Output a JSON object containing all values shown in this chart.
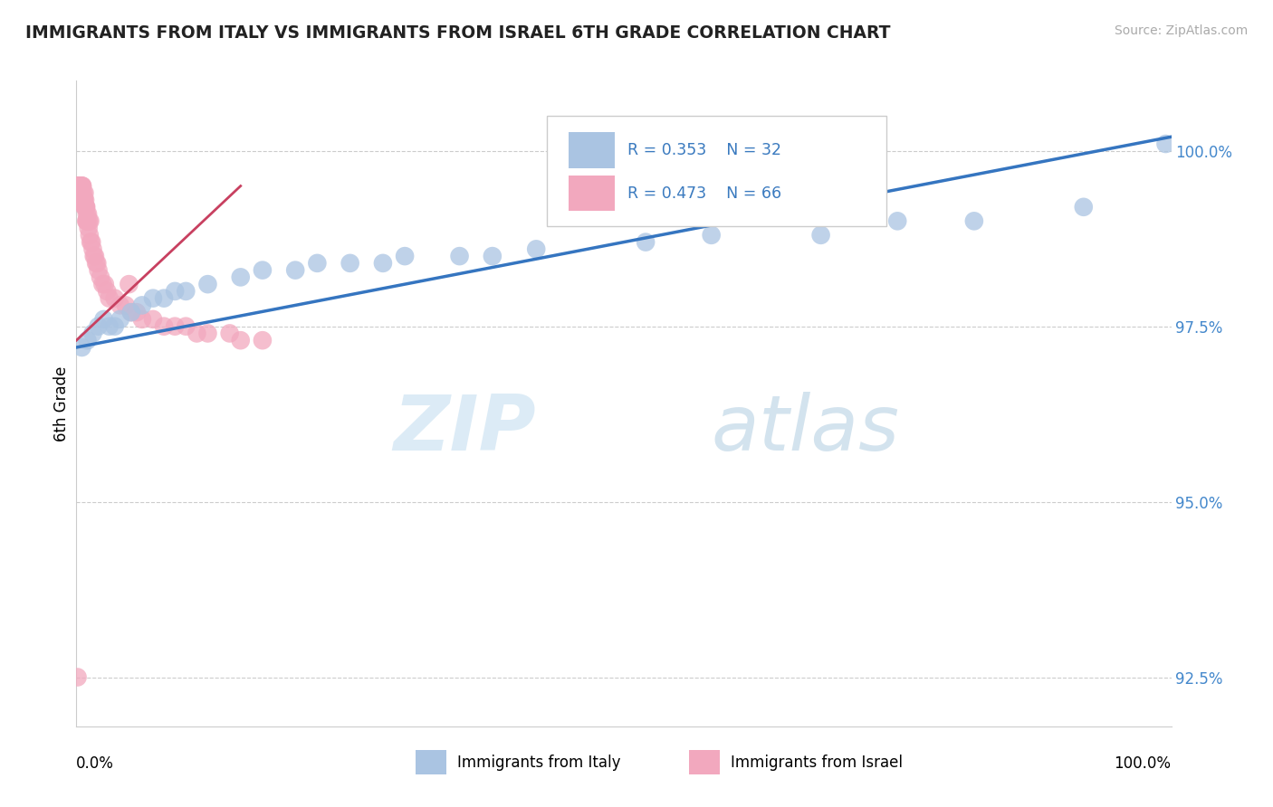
{
  "title": "IMMIGRANTS FROM ITALY VS IMMIGRANTS FROM ISRAEL 6TH GRADE CORRELATION CHART",
  "source": "Source: ZipAtlas.com",
  "ylabel": "6th Grade",
  "xlim": [
    0.0,
    100.0
  ],
  "ylim": [
    91.8,
    101.0
  ],
  "yticks": [
    92.5,
    95.0,
    97.5,
    100.0
  ],
  "ytick_labels": [
    "92.5%",
    "95.0%",
    "97.5%",
    "100.0%"
  ],
  "legend_r1": "R = 0.353",
  "legend_n1": "N = 32",
  "legend_r2": "R = 0.473",
  "legend_n2": "N = 66",
  "italy_color": "#aac4e2",
  "israel_color": "#f2a8be",
  "italy_line_color": "#3575c0",
  "israel_line_color": "#c84060",
  "grid_color": "#cccccc",
  "italy_points_x": [
    0.5,
    1.0,
    1.5,
    2.0,
    2.5,
    3.0,
    3.5,
    4.0,
    5.0,
    6.0,
    7.0,
    8.0,
    9.0,
    10.0,
    12.0,
    15.0,
    17.0,
    20.0,
    22.0,
    25.0,
    28.0,
    30.0,
    35.0,
    38.0,
    42.0,
    52.0,
    58.0,
    68.0,
    75.0,
    82.0,
    92.0,
    99.5
  ],
  "italy_points_y": [
    97.2,
    97.3,
    97.4,
    97.5,
    97.6,
    97.5,
    97.5,
    97.6,
    97.7,
    97.8,
    97.9,
    97.9,
    98.0,
    98.0,
    98.1,
    98.2,
    98.3,
    98.3,
    98.4,
    98.4,
    98.4,
    98.5,
    98.5,
    98.5,
    98.6,
    98.7,
    98.8,
    98.8,
    99.0,
    99.0,
    99.2,
    100.1
  ],
  "israel_points_x": [
    0.1,
    0.15,
    0.2,
    0.25,
    0.3,
    0.35,
    0.4,
    0.45,
    0.5,
    0.55,
    0.6,
    0.65,
    0.7,
    0.75,
    0.8,
    0.85,
    0.9,
    0.95,
    1.0,
    1.1,
    1.2,
    1.3,
    1.4,
    1.5,
    1.6,
    1.7,
    1.8,
    1.9,
    2.0,
    2.2,
    2.4,
    2.6,
    2.8,
    3.0,
    3.5,
    4.0,
    4.5,
    5.0,
    5.5,
    6.0,
    7.0,
    8.0,
    9.0,
    10.0,
    11.0,
    12.0,
    14.0,
    15.0,
    17.0,
    4.8,
    0.3,
    0.4,
    0.5,
    0.6,
    0.55,
    0.65,
    0.7,
    0.8,
    0.75,
    0.9,
    0.85,
    0.95,
    1.05,
    1.15,
    1.25,
    0.1
  ],
  "israel_points_y": [
    99.5,
    99.5,
    99.5,
    99.5,
    99.5,
    99.5,
    99.5,
    99.5,
    99.5,
    99.5,
    99.3,
    99.3,
    99.3,
    99.2,
    99.2,
    99.2,
    99.0,
    99.0,
    99.0,
    98.9,
    98.8,
    98.7,
    98.7,
    98.6,
    98.5,
    98.5,
    98.4,
    98.4,
    98.3,
    98.2,
    98.1,
    98.1,
    98.0,
    97.9,
    97.9,
    97.8,
    97.8,
    97.7,
    97.7,
    97.6,
    97.6,
    97.5,
    97.5,
    97.5,
    97.4,
    97.4,
    97.4,
    97.3,
    97.3,
    98.1,
    99.5,
    99.4,
    99.4,
    99.3,
    99.5,
    99.4,
    99.3,
    99.3,
    99.4,
    99.2,
    99.2,
    99.1,
    99.1,
    99.0,
    99.0,
    92.5
  ]
}
